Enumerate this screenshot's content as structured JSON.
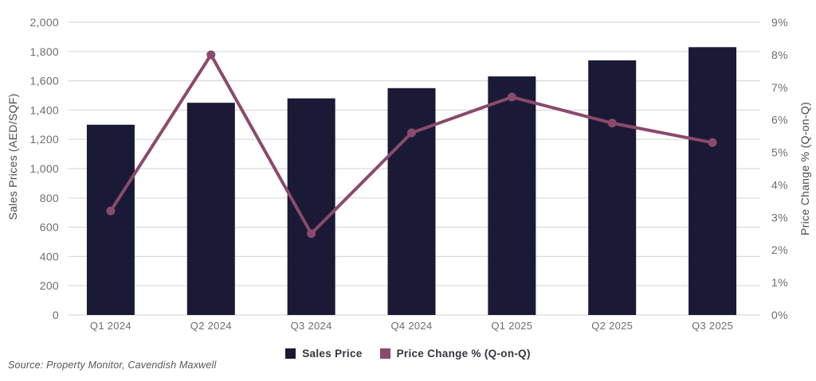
{
  "chart_data": {
    "type": "bar",
    "subtype": "combo-bar-line-dual-axis",
    "categories": [
      "Q1 2024",
      "Q2 2024",
      "Q3 2024",
      "Q4 2024",
      "Q1 2025",
      "Q2 2025",
      "Q3 2025"
    ],
    "series": [
      {
        "name": "Sales Price",
        "type": "bar",
        "axis": "left",
        "color": "#1a1a36",
        "values": [
          1300,
          1450,
          1480,
          1550,
          1630,
          1740,
          1830
        ]
      },
      {
        "name": "Price Change % (Q-on-Q)",
        "type": "line",
        "axis": "right",
        "color": "#8a4a6c",
        "values": [
          3.2,
          8.0,
          2.5,
          5.6,
          6.7,
          5.9,
          5.3
        ]
      }
    ],
    "title": "",
    "xlabel": "",
    "ylabel_left": "Sales Prices (AED/SQF)",
    "ylabel_right": "Price Change % (Q-on-Q)",
    "left_axis": {
      "min": 0,
      "max": 2000,
      "step": 200
    },
    "right_axis": {
      "min": 0,
      "max": 9,
      "step": 1,
      "suffix": "%"
    },
    "grid": "horizontal",
    "legend_position": "bottom"
  },
  "legend": {
    "items": [
      {
        "label": "Sales Price",
        "color": "#1a1a36"
      },
      {
        "label": "Price Change % (Q-on-Q)",
        "color": "#8a4a6c"
      }
    ]
  },
  "source": "Source: Property Monitor, Cavendish Maxwell",
  "colors": {
    "bar": "#1a1a36",
    "line": "#8a4a6c",
    "grid": "#d9d9d9",
    "tick_text": "#6e6e6e",
    "axis_title_text": "#4d4d4d",
    "legend_text": "#35353f",
    "source_text": "#565656",
    "background": "#ffffff"
  }
}
